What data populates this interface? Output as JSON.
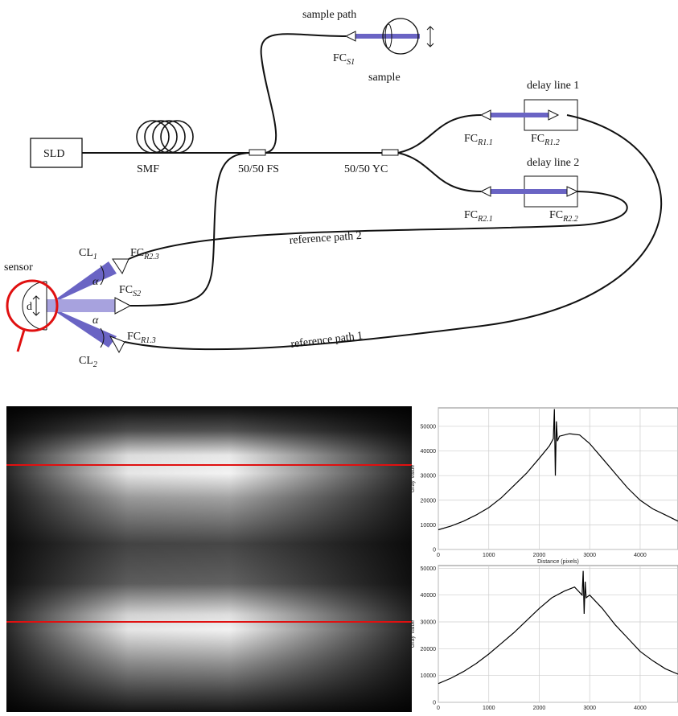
{
  "diagram": {
    "labels": {
      "sample_path": "sample path",
      "sample": "sample",
      "delay_line_1": "delay line 1",
      "delay_line_2": "delay line 2",
      "sld": "SLD",
      "smf": "SMF",
      "fs": "50/50 FS",
      "yc": "50/50 YC",
      "reference_path_2": "reference path 2",
      "reference_path_1": "reference path 1",
      "sensor": "sensor",
      "d": "d",
      "alpha_1": "α",
      "alpha_2": "α"
    },
    "components": {
      "fc_s1": {
        "main": "FC",
        "sub": "S1"
      },
      "fc_r11": {
        "main": "FC",
        "sub": "R1.1"
      },
      "fc_r12": {
        "main": "FC",
        "sub": "R1.2"
      },
      "fc_r21": {
        "main": "FC",
        "sub": "R2.1"
      },
      "fc_r22": {
        "main": "FC",
        "sub": "R2.2"
      },
      "fc_r23": {
        "main": "FC",
        "sub": "R2.3"
      },
      "fc_s2": {
        "main": "FC",
        "sub": "S2"
      },
      "fc_r13": {
        "main": "FC",
        "sub": "R1.3"
      },
      "cl_1": {
        "main": "CL",
        "sub": "1"
      },
      "cl_2": {
        "main": "CL",
        "sub": "2"
      }
    }
  },
  "chart_data": [
    {
      "type": "line",
      "x_label": "Distance (pixels)",
      "y_label": "Gray Value",
      "color": "#000000",
      "grid": true,
      "x": [
        0,
        250,
        500,
        750,
        1000,
        1250,
        1500,
        1750,
        2000,
        2200,
        2280,
        2300,
        2320,
        2340,
        2360,
        2400,
        2600,
        2800,
        3000,
        3250,
        3500,
        3750,
        4000,
        4250,
        4500,
        4750
      ],
      "values": [
        8000,
        9500,
        11500,
        14000,
        17000,
        21000,
        26000,
        31000,
        37000,
        42000,
        45000,
        57000,
        30000,
        52000,
        44000,
        46000,
        47000,
        46500,
        43000,
        37000,
        31000,
        25000,
        20000,
        16500,
        14000,
        11500
      ],
      "xlim": [
        0,
        4750
      ],
      "ylim": [
        0,
        57500
      ],
      "xticks": [
        0,
        1000,
        2000,
        3000,
        4000
      ],
      "yticks": [
        0,
        10000,
        20000,
        30000,
        40000,
        50000
      ]
    },
    {
      "type": "line",
      "y_label": "Gray Value",
      "color": "#000000",
      "grid": true,
      "x": [
        0,
        250,
        500,
        750,
        1000,
        1250,
        1500,
        1750,
        2000,
        2250,
        2500,
        2700,
        2850,
        2870,
        2890,
        2910,
        2930,
        3000,
        3250,
        3500,
        3750,
        4000,
        4250,
        4500,
        4750
      ],
      "values": [
        7000,
        9000,
        11500,
        14500,
        18000,
        22000,
        26000,
        30500,
        35000,
        39000,
        41500,
        43000,
        40000,
        49000,
        33000,
        45000,
        39000,
        40000,
        35000,
        29000,
        24000,
        19000,
        15500,
        12500,
        10500
      ],
      "xlim": [
        0,
        4750
      ],
      "ylim": [
        0,
        51000
      ],
      "xticks": [
        0,
        1000,
        2000,
        3000,
        4000
      ],
      "yticks": [
        0,
        10000,
        20000,
        30000,
        40000,
        50000
      ]
    }
  ]
}
